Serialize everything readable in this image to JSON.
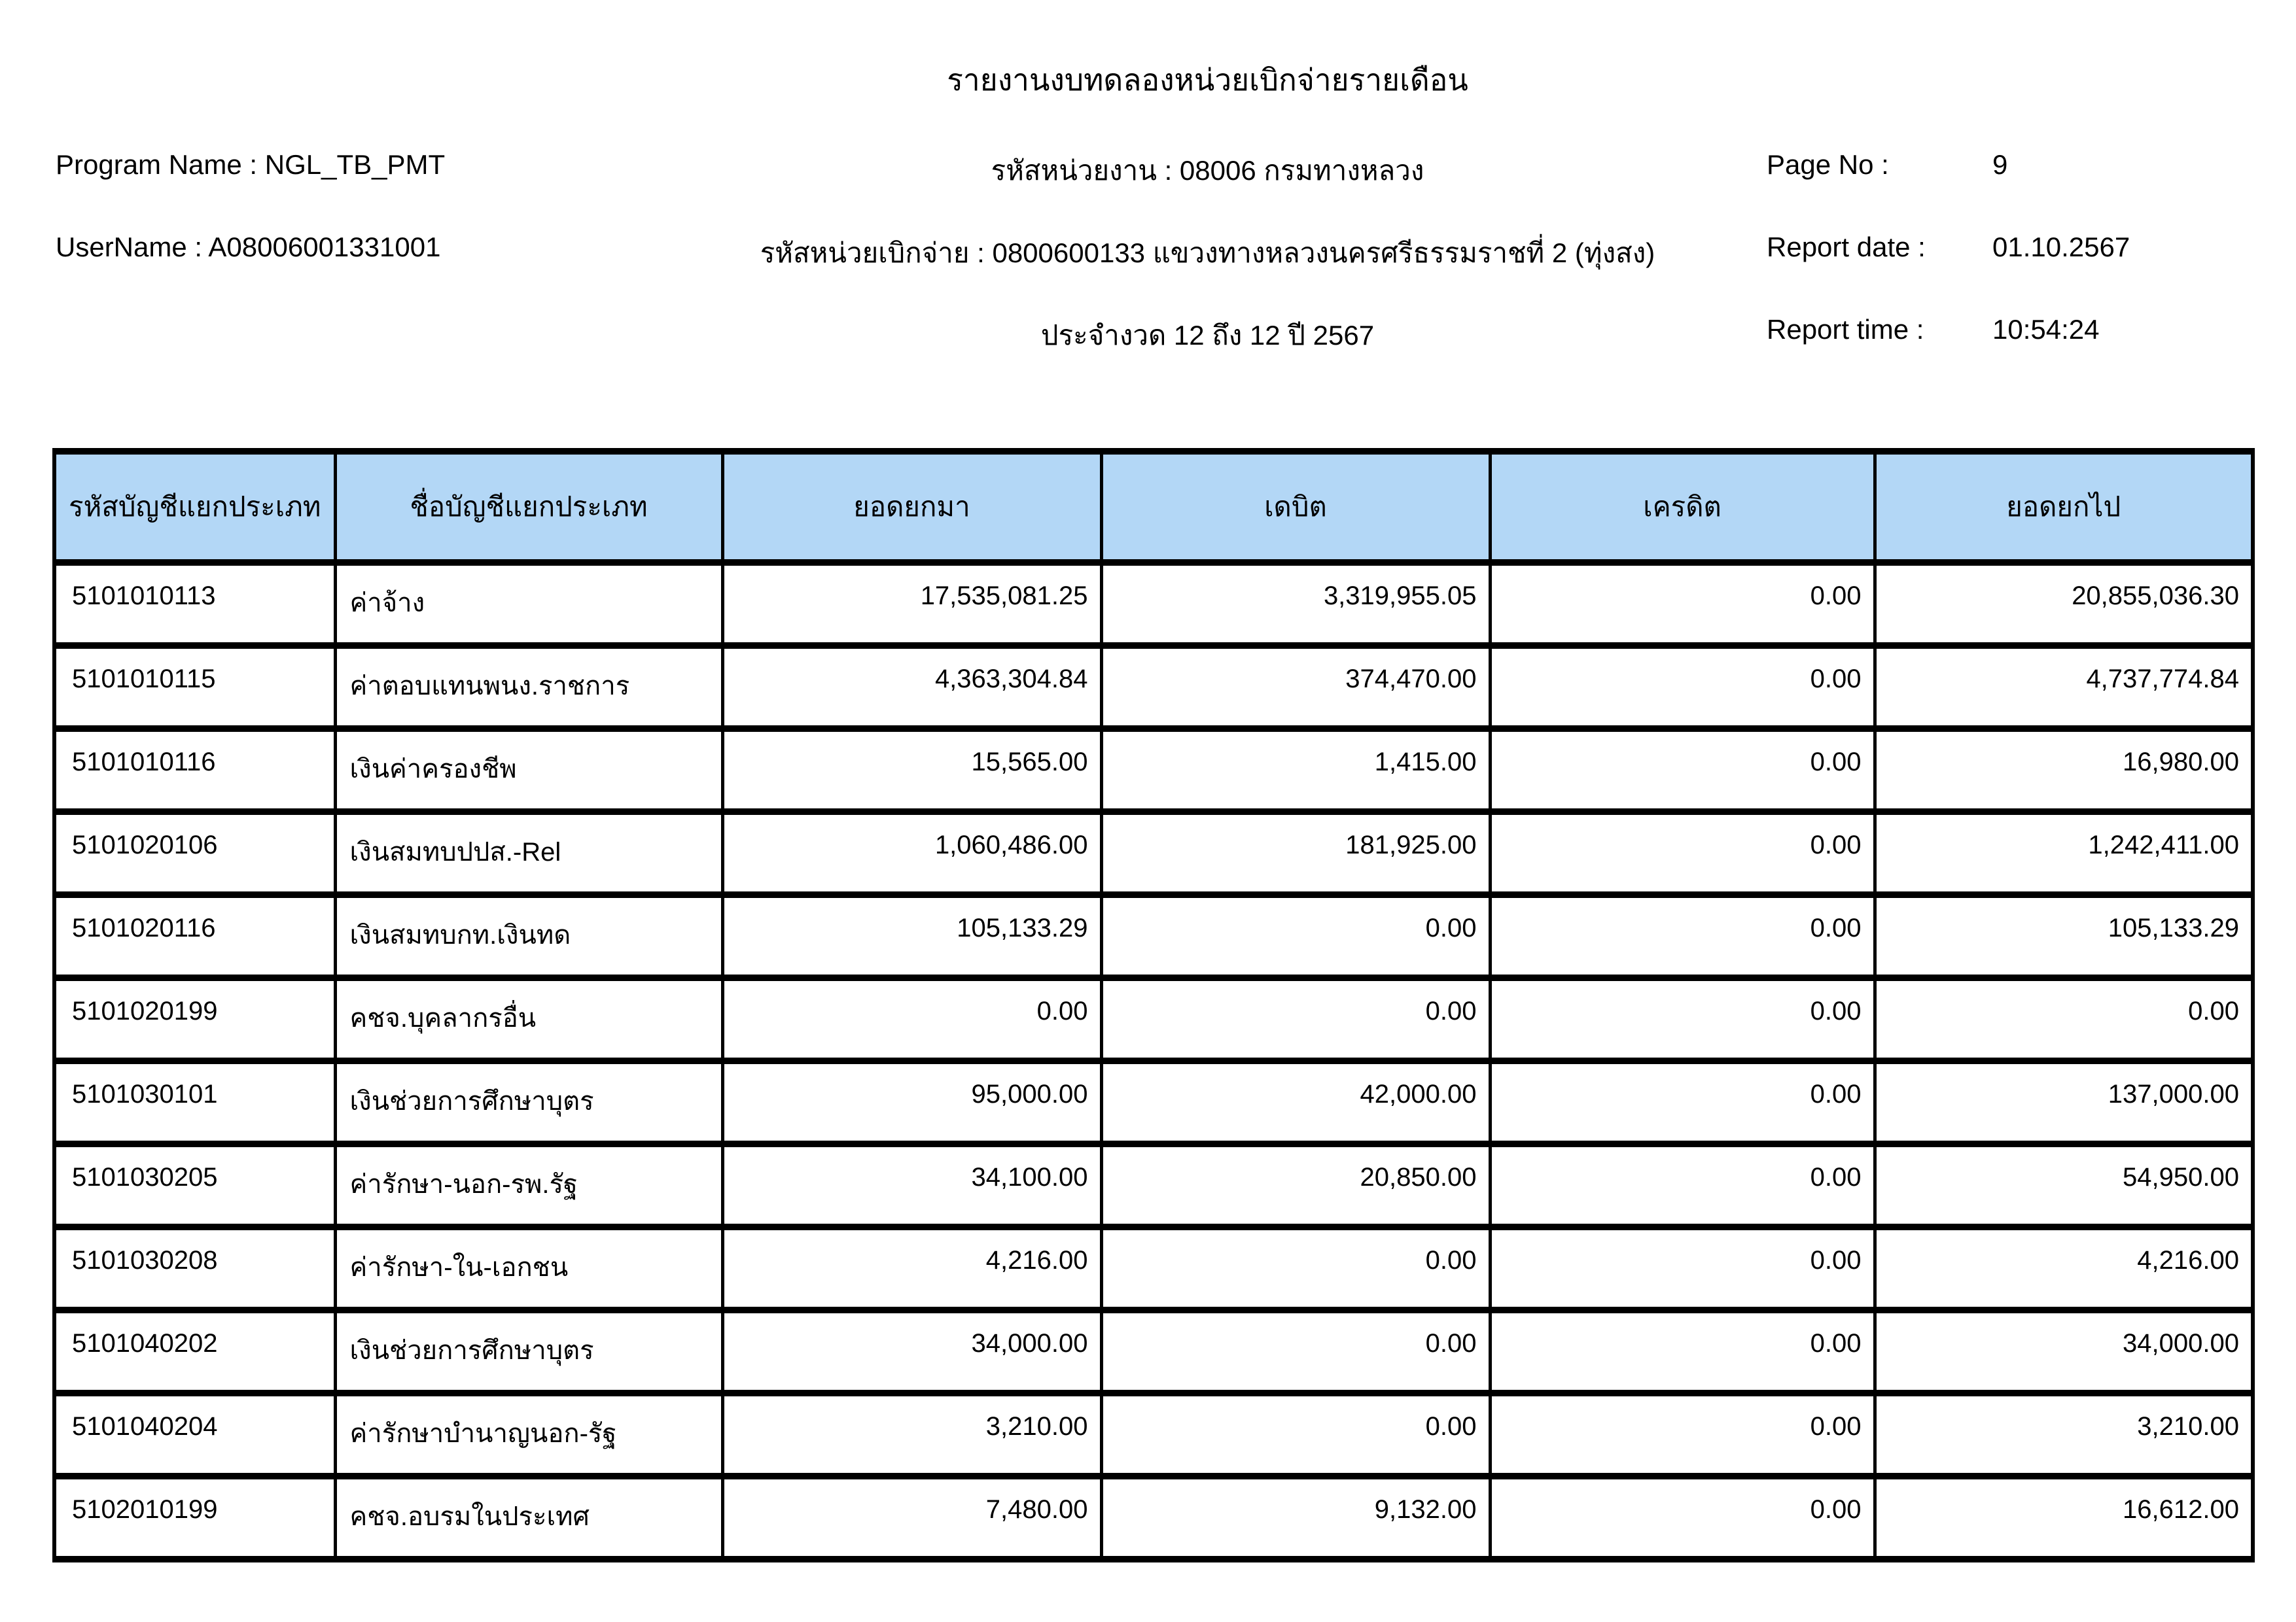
{
  "report": {
    "title": "รายงานงบทดลองหน่วยเบิกจ่ายรายเดือน",
    "program_line": "Program Name : NGL_TB_PMT",
    "user_line": "UserName : A08006001331001",
    "agency_line": "รหัสหน่วยงาน : 08006 กรมทางหลวง",
    "unit_line": "รหัสหน่วยเบิกจ่าย : 0800600133 แขวงทางหลวงนครศรีธรรมราชที่ 2 (ทุ่งสง)",
    "period_line": "ประจำงวด 12 ถึง 12 ปี 2567",
    "page_no_label": "Page No :",
    "page_no": "9",
    "report_date_label": "Report date :",
    "report_date": "01.10.2567",
    "report_time_label": "Report time :",
    "report_time": "10:54:24"
  },
  "colors": {
    "header_bg": "#b3d7f6",
    "border": "#000000"
  },
  "table": {
    "columns": [
      {
        "key": "code",
        "label": "รหัสบัญชีแยกประเภท"
      },
      {
        "key": "name",
        "label": "ชื่อบัญชีแยกประเภท"
      },
      {
        "key": "brought_forward",
        "label": "ยอดยกมา"
      },
      {
        "key": "debit",
        "label": "เดบิต"
      },
      {
        "key": "credit",
        "label": "เครดิต"
      },
      {
        "key": "carried_forward",
        "label": "ยอดยกไป"
      }
    ],
    "rows": [
      {
        "code": "5101010113",
        "name": "ค่าจ้าง",
        "brought_forward": "17,535,081.25",
        "debit": "3,319,955.05",
        "credit": "0.00",
        "carried_forward": "20,855,036.30"
      },
      {
        "code": "5101010115",
        "name": "ค่าตอบแทนพนง.ราชการ",
        "brought_forward": "4,363,304.84",
        "debit": "374,470.00",
        "credit": "0.00",
        "carried_forward": "4,737,774.84"
      },
      {
        "code": "5101010116",
        "name": "เงินค่าครองชีพ",
        "brought_forward": "15,565.00",
        "debit": "1,415.00",
        "credit": "0.00",
        "carried_forward": "16,980.00"
      },
      {
        "code": "5101020106",
        "name": "เงินสมทบปปส.-Rel",
        "brought_forward": "1,060,486.00",
        "debit": "181,925.00",
        "credit": "0.00",
        "carried_forward": "1,242,411.00"
      },
      {
        "code": "5101020116",
        "name": "เงินสมทบกท.เงินทด",
        "brought_forward": "105,133.29",
        "debit": "0.00",
        "credit": "0.00",
        "carried_forward": "105,133.29"
      },
      {
        "code": "5101020199",
        "name": "คชจ.บุคลากรอื่น",
        "brought_forward": "0.00",
        "debit": "0.00",
        "credit": "0.00",
        "carried_forward": "0.00"
      },
      {
        "code": "5101030101",
        "name": "เงินช่วยการศึกษาบุตร",
        "brought_forward": "95,000.00",
        "debit": "42,000.00",
        "credit": "0.00",
        "carried_forward": "137,000.00"
      },
      {
        "code": "5101030205",
        "name": "ค่ารักษา-นอก-รพ.รัฐ",
        "brought_forward": "34,100.00",
        "debit": "20,850.00",
        "credit": "0.00",
        "carried_forward": "54,950.00"
      },
      {
        "code": "5101030208",
        "name": "ค่ารักษา-ใน-เอกชน",
        "brought_forward": "4,216.00",
        "debit": "0.00",
        "credit": "0.00",
        "carried_forward": "4,216.00"
      },
      {
        "code": "5101040202",
        "name": "เงินช่วยการศึกษาบุตร",
        "brought_forward": "34,000.00",
        "debit": "0.00",
        "credit": "0.00",
        "carried_forward": "34,000.00"
      },
      {
        "code": "5101040204",
        "name": "ค่ารักษาบำนาญนอก-รัฐ",
        "brought_forward": "3,210.00",
        "debit": "0.00",
        "credit": "0.00",
        "carried_forward": "3,210.00"
      },
      {
        "code": "5102010199",
        "name": "คชจ.อบรมในประเทศ",
        "brought_forward": "7,480.00",
        "debit": "9,132.00",
        "credit": "0.00",
        "carried_forward": "16,612.00"
      }
    ]
  }
}
